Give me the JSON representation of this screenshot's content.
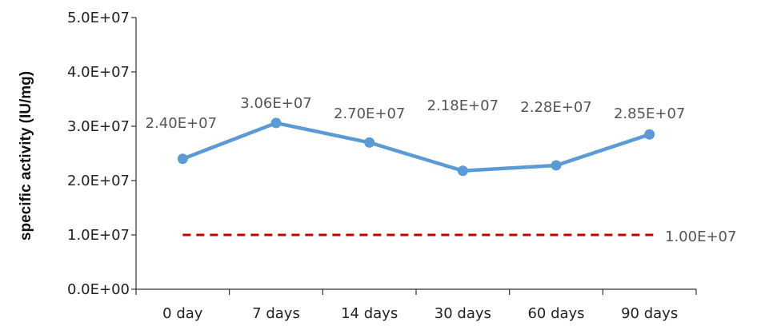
{
  "chart_data": {
    "type": "line",
    "title": "",
    "xlabel": "",
    "ylabel": "specific activity (IU/mg)",
    "categories": [
      "0 day",
      "7 days",
      "14 days",
      "30 days",
      "60 days",
      "90 days"
    ],
    "ylim": [
      0,
      50000000
    ],
    "y_ticks": [
      0,
      10000000,
      20000000,
      30000000,
      40000000,
      50000000
    ],
    "y_tick_labels": [
      "0.0E+00",
      "1.0E+07",
      "2.0E+07",
      "3.0E+07",
      "4.0E+07",
      "5.0E+07"
    ],
    "grid": false,
    "series": [
      {
        "values": [
          24000000,
          30600000,
          27000000,
          21800000,
          22800000,
          28500000
        ],
        "data_labels": [
          "2.40E+07",
          "3.06E+07",
          "2.70E+07",
          "2.18E+07",
          "2.28E+07",
          "2.85E+07"
        ],
        "color": "#5B9BD5",
        "style": "solid-markers"
      }
    ],
    "reference_line": {
      "value": 10000000,
      "label": "1.00E+07",
      "color": "#C00000",
      "style": "dashed"
    }
  }
}
